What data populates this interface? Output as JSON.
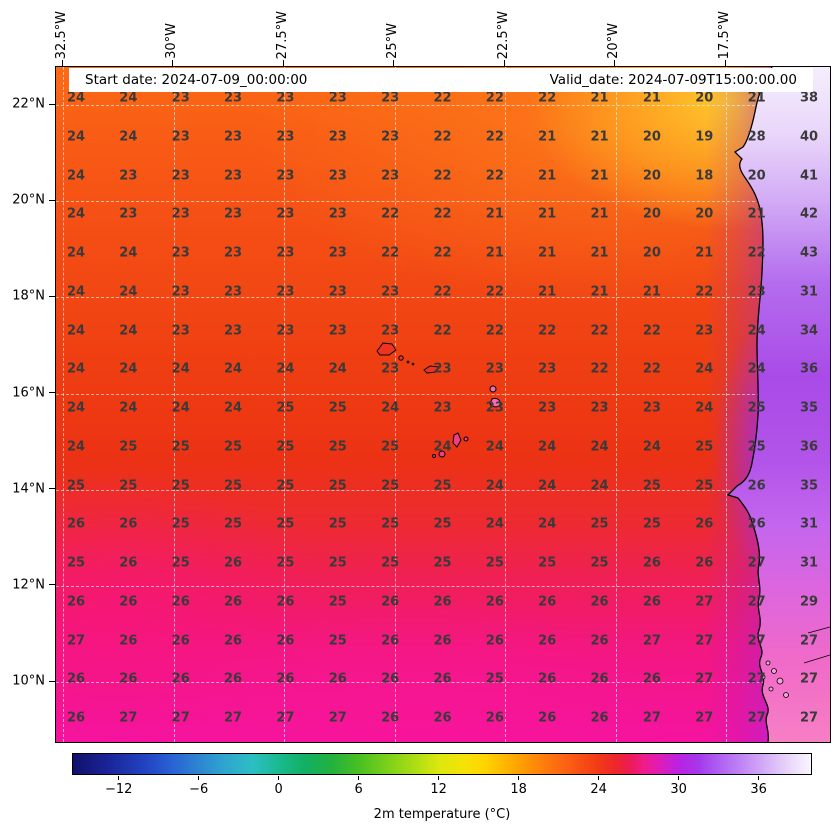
{
  "chart_data": {
    "type": "heatmap",
    "title_annotations": {
      "start_date": "Start date: 2024-07-09_00:00:00",
      "valid_date": "Valid_date: 2024-07-09T15:00:00.00"
    },
    "x_tick_labels": [
      "32.5°W",
      "30°W",
      "27.5°W",
      "25°W",
      "22.5°W",
      "20°W",
      "17.5°W"
    ],
    "y_tick_labels": [
      "22°N",
      "20°N",
      "18°N",
      "16°N",
      "14°N",
      "12°N",
      "10°N"
    ],
    "grid_temperatures_c": [
      [
        24,
        24,
        23,
        23,
        23,
        23,
        23,
        22,
        22,
        22,
        21,
        21,
        20,
        21,
        38
      ],
      [
        24,
        24,
        23,
        23,
        23,
        23,
        23,
        22,
        22,
        21,
        21,
        20,
        19,
        28,
        40
      ],
      [
        24,
        23,
        23,
        23,
        23,
        23,
        23,
        22,
        22,
        21,
        21,
        20,
        18,
        20,
        41
      ],
      [
        24,
        23,
        23,
        23,
        23,
        23,
        22,
        22,
        21,
        21,
        21,
        20,
        20,
        21,
        42
      ],
      [
        24,
        24,
        23,
        23,
        23,
        23,
        22,
        22,
        21,
        21,
        21,
        20,
        21,
        22,
        43
      ],
      [
        24,
        24,
        23,
        23,
        23,
        23,
        23,
        22,
        22,
        21,
        21,
        21,
        22,
        23,
        31
      ],
      [
        24,
        24,
        23,
        23,
        23,
        23,
        23,
        22,
        22,
        22,
        22,
        22,
        23,
        24,
        34
      ],
      [
        24,
        24,
        24,
        24,
        24,
        24,
        23,
        23,
        23,
        23,
        22,
        22,
        24,
        24,
        36
      ],
      [
        24,
        24,
        24,
        24,
        25,
        25,
        24,
        23,
        23,
        23,
        23,
        23,
        24,
        25,
        35
      ],
      [
        24,
        25,
        25,
        25,
        25,
        25,
        25,
        24,
        24,
        24,
        24,
        24,
        25,
        25,
        36
      ],
      [
        25,
        25,
        25,
        25,
        25,
        25,
        25,
        25,
        24,
        24,
        24,
        25,
        25,
        26,
        35
      ],
      [
        26,
        26,
        25,
        25,
        25,
        25,
        25,
        25,
        24,
        24,
        25,
        25,
        26,
        26,
        31
      ],
      [
        25,
        26,
        25,
        26,
        25,
        25,
        25,
        25,
        25,
        25,
        25,
        26,
        26,
        27,
        31
      ],
      [
        26,
        26,
        26,
        26,
        26,
        25,
        26,
        26,
        26,
        26,
        26,
        26,
        27,
        27,
        29
      ],
      [
        27,
        26,
        26,
        26,
        26,
        25,
        26,
        26,
        26,
        26,
        26,
        27,
        27,
        27,
        27
      ],
      [
        26,
        26,
        26,
        26,
        26,
        26,
        26,
        26,
        25,
        26,
        26,
        26,
        27,
        27,
        27
      ],
      [
        26,
        27,
        27,
        27,
        27,
        27,
        26,
        26,
        26,
        26,
        26,
        27,
        27,
        27,
        27
      ]
    ],
    "colorbar": {
      "label": "2m temperature (°C)",
      "tick_labels": [
        "−12",
        "−6",
        "0",
        "6",
        "12",
        "18",
        "24",
        "30",
        "36"
      ],
      "tick_values": [
        -12,
        -6,
        0,
        6,
        12,
        18,
        24,
        30,
        36
      ],
      "value_range": [
        -15.5,
        40
      ],
      "gradient_stops": [
        {
          "v": -15.5,
          "c": "#11116b"
        },
        {
          "v": -13,
          "c": "#1a2396"
        },
        {
          "v": -10,
          "c": "#2244c4"
        },
        {
          "v": -8,
          "c": "#2a63d4"
        },
        {
          "v": -6,
          "c": "#2e86d0"
        },
        {
          "v": -4,
          "c": "#2fa6cf"
        },
        {
          "v": -2,
          "c": "#2cbfc3"
        },
        {
          "v": 0,
          "c": "#1ab98f"
        },
        {
          "v": 2,
          "c": "#12b062"
        },
        {
          "v": 4,
          "c": "#23b13d"
        },
        {
          "v": 6,
          "c": "#48c022"
        },
        {
          "v": 8,
          "c": "#78cf1b"
        },
        {
          "v": 10,
          "c": "#a8dc15"
        },
        {
          "v": 12,
          "c": "#dbe80e"
        },
        {
          "v": 14,
          "c": "#f7e206"
        },
        {
          "v": 15.5,
          "c": "#ffd400"
        },
        {
          "v": 18,
          "c": "#ffa200"
        },
        {
          "v": 20,
          "c": "#ff7b0c"
        },
        {
          "v": 22,
          "c": "#fb5a14"
        },
        {
          "v": 24,
          "c": "#f23a16"
        },
        {
          "v": 25.5,
          "c": "#ee2430"
        },
        {
          "v": 26.5,
          "c": "#ee1a5e"
        },
        {
          "v": 27.5,
          "c": "#ef1c8e"
        },
        {
          "v": 28.5,
          "c": "#e11cb4"
        },
        {
          "v": 30,
          "c": "#bb22e0"
        },
        {
          "v": 31.5,
          "c": "#a637ec"
        },
        {
          "v": 33,
          "c": "#ae5ef2"
        },
        {
          "v": 34.5,
          "c": "#bd7ff4"
        },
        {
          "v": 36,
          "c": "#cfa0f6"
        },
        {
          "v": 37.5,
          "c": "#e0c4f9"
        },
        {
          "v": 39,
          "c": "#f0e3fc"
        },
        {
          "v": 40,
          "c": "#faf6fe"
        }
      ]
    }
  },
  "colors": {
    "ocean_warm_orange": "#fb6b15",
    "ocean_red": "#ee3b12",
    "ocean_magenta": "#f513a0",
    "coastal_violet": "#a94be7",
    "land_hot_lavender": "#e9d6fa",
    "value_text": "#3a3a3a"
  }
}
